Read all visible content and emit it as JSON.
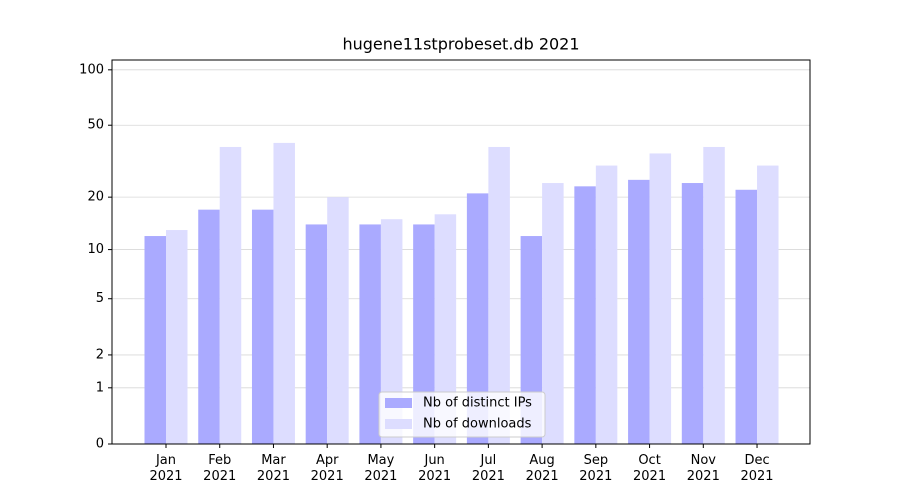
{
  "chart_data": {
    "type": "bar",
    "title": "hugene11stprobeset.db 2021",
    "categories": [
      "Jan 2021",
      "Feb 2021",
      "Mar 2021",
      "Apr 2021",
      "May 2021",
      "Jun 2021",
      "Jul 2021",
      "Aug 2021",
      "Sep 2021",
      "Oct 2021",
      "Nov 2021",
      "Dec 2021"
    ],
    "series": [
      {
        "name": "Nb of distinct IPs",
        "color": "#aaaaff",
        "values": [
          12,
          17,
          17,
          14,
          14,
          14,
          21,
          12,
          23,
          25,
          24,
          22
        ]
      },
      {
        "name": "Nb of downloads",
        "color": "#ddddff",
        "values": [
          13,
          38,
          40,
          20,
          15,
          16,
          38,
          24,
          30,
          35,
          38,
          30
        ]
      }
    ],
    "yscale": "log1p",
    "ylim": [
      0,
      113
    ],
    "yticks": [
      0,
      1,
      2,
      5,
      10,
      20,
      50,
      100
    ],
    "grid": true,
    "legend": "lower center"
  }
}
